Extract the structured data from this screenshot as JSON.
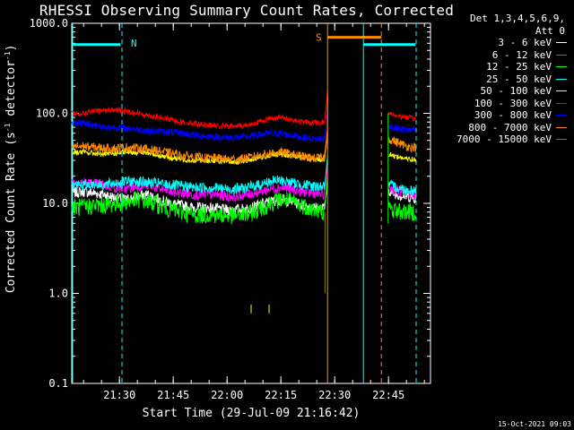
{
  "chart_data": {
    "type": "line",
    "title": "RHESSI Observing Summary Count Rates, Corrected",
    "xlabel": "Start Time (29-Jul-09 21:16:42)",
    "ylabel": "Corrected Count Rate (s",
    "ylabel_unit_exp1": "-1",
    "ylabel_mid": " detector",
    "ylabel_unit_exp2": "-1",
    "ylabel_end": ")",
    "y_scale": "log",
    "ylim": [
      0.1,
      1000
    ],
    "y_ticks": [
      "1000.0",
      "100.0",
      "10.0",
      "1.0",
      "0.1"
    ],
    "xlim_minutes": [
      0,
      100
    ],
    "x_ticks": [
      {
        "label": "21:30",
        "minute": 13.3
      },
      {
        "label": "21:45",
        "minute": 28.3
      },
      {
        "label": "22:00",
        "minute": 43.3
      },
      {
        "label": "22:15",
        "minute": 58.3
      },
      {
        "label": "22:30",
        "minute": 73.3
      },
      {
        "label": "22:45",
        "minute": 88.3
      }
    ],
    "legend_header": [
      "Det 1,3,4,5,6,9,",
      "Att 0"
    ],
    "legend_position": "right",
    "series": [
      {
        "name": "3 - 6 keV",
        "color": "#ffffff",
        "values": [
          13,
          13.5,
          13,
          12.5,
          11.5,
          11,
          12,
          12.5,
          11,
          10,
          9.5,
          9,
          9,
          8.8,
          8.5,
          8.5,
          8.8,
          9.5,
          10.5,
          11,
          10.5,
          9.5,
          9,
          8.8
        ]
      },
      {
        "name": "6 - 12 keV",
        "color": "#ff00ff",
        "values": [
          17,
          17,
          16.5,
          16,
          15,
          14.5,
          15.5,
          16,
          14.5,
          13.5,
          13,
          12.5,
          12.5,
          12.5,
          12,
          12,
          12.5,
          13.5,
          14.5,
          15,
          14.5,
          13.5,
          13,
          12.5
        ]
      },
      {
        "name": "12 - 25 keV",
        "color": "#00ff00",
        "values": [
          9,
          9,
          9.5,
          9.5,
          10,
          10.5,
          11,
          10.5,
          9.5,
          8.5,
          8,
          7.5,
          7.5,
          7.5,
          7.3,
          7.3,
          7.5,
          8.5,
          10,
          11,
          10.5,
          9.5,
          8.5,
          8
        ]
      },
      {
        "name": "25 - 50 keV",
        "color": "#00ffff",
        "values": [
          16,
          16,
          16.5,
          16,
          17,
          17.5,
          17.5,
          17,
          16.5,
          16,
          15.5,
          15,
          15,
          15,
          14.5,
          14.5,
          15,
          16,
          17.5,
          18,
          17,
          16,
          15.5,
          15.5
        ]
      },
      {
        "name": "50 - 100 keV",
        "color": "#ffff00",
        "values": [
          37,
          37,
          36,
          35,
          36,
          37,
          37,
          36,
          34,
          32,
          31,
          30,
          30,
          30,
          29,
          29,
          30,
          32,
          34,
          35,
          34,
          32,
          31,
          31
        ]
      },
      {
        "name": "100 - 300 keV",
        "color": "#ff0000",
        "values": [
          100,
          100,
          105,
          108,
          110,
          105,
          100,
          95,
          90,
          85,
          80,
          78,
          75,
          73,
          72,
          72,
          74,
          80,
          88,
          90,
          85,
          80,
          78,
          80
        ]
      },
      {
        "name": "300 - 800 keV",
        "color": "#0000ff",
        "values": [
          78,
          78,
          75,
          70,
          70,
          68,
          66,
          64,
          63,
          62,
          60,
          58,
          56,
          55,
          54,
          54,
          55,
          58,
          60,
          60,
          57,
          54,
          52,
          52
        ]
      },
      {
        "name": "800 - 7000 keV",
        "color": "#ff8c00",
        "values": [
          43,
          43,
          42,
          41,
          41,
          42,
          41,
          40,
          38,
          36,
          34,
          33,
          32,
          32,
          31,
          31,
          32,
          34,
          36,
          37,
          35,
          33,
          32,
          32
        ]
      },
      {
        "name": "7000 - 15000 keV",
        "color": "#808000",
        "values": []
      }
    ],
    "right_segment_values": {
      "100 - 300 keV": [
        100,
        97,
        94,
        92,
        90,
        88,
        87
      ],
      "300 - 800 keV": [
        72,
        70,
        68,
        67,
        66,
        65,
        65
      ],
      "800 - 7000 keV": [
        52,
        50,
        47,
        45,
        43,
        42,
        42
      ],
      "50 - 100 keV": [
        35,
        34,
        33,
        32,
        31,
        31,
        30
      ],
      "25 - 50 keV": [
        16,
        15.5,
        15,
        14.5,
        14,
        14,
        14
      ],
      "6 - 12 keV": [
        15,
        14.5,
        14,
        13.5,
        13,
        13,
        13
      ],
      "3 - 6 keV": [
        14,
        13,
        12.5,
        12,
        12,
        11.5,
        11.5
      ],
      "12 - 25 keV": [
        9,
        8.5,
        8.3,
        8,
        8,
        8,
        8
      ]
    },
    "flags": [
      {
        "label": "N",
        "color": "#00ffff"
      },
      {
        "label": "S",
        "color": "#ff8c00"
      }
    ]
  },
  "footer": "15-Oct-2021 09:03"
}
